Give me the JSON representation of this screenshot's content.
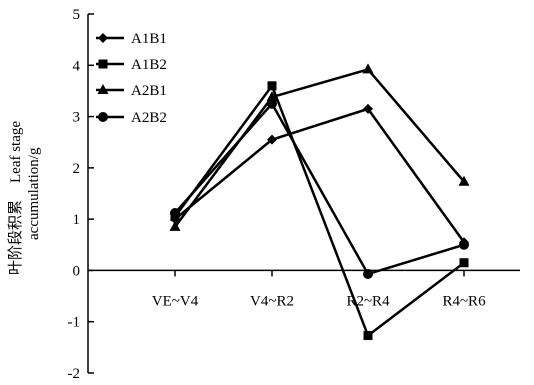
{
  "chart_data": {
    "type": "line",
    "categories": [
      "VE~V4",
      "V4~R2",
      "R2~R4",
      "R4~R6"
    ],
    "ylabel_cn": "叶阶段积累",
    "ylabel_en_line1": "Leaf stage",
    "ylabel_en_line2": "accumulation/g",
    "ylim": [
      -2,
      5
    ],
    "yticks": [
      -2,
      -1,
      0,
      1,
      2,
      3,
      4,
      5
    ],
    "legend_position": "top-left",
    "series": [
      {
        "name": "A1B1",
        "marker": "diamond",
        "values": [
          1.0,
          2.55,
          3.15,
          0.55
        ]
      },
      {
        "name": "A1B2",
        "marker": "square",
        "values": [
          1.05,
          3.6,
          -1.27,
          0.15
        ]
      },
      {
        "name": "A2B1",
        "marker": "triangle",
        "values": [
          0.85,
          3.38,
          3.92,
          1.73
        ]
      },
      {
        "name": "A2B2",
        "marker": "circle",
        "values": [
          1.12,
          3.25,
          -0.07,
          0.5
        ]
      }
    ]
  }
}
